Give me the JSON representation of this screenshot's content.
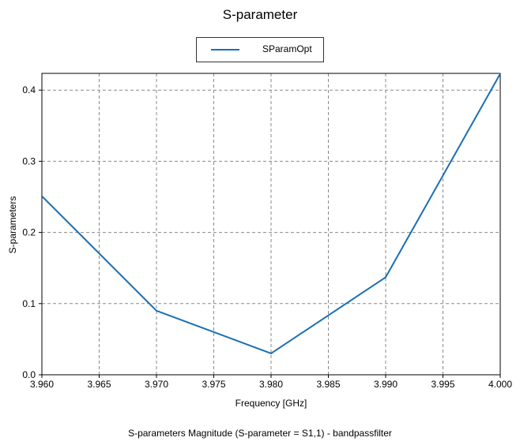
{
  "chart_data": {
    "type": "line",
    "title": "S-parameter",
    "xlabel": "Frequency [GHz]",
    "ylabel": "S-parameters",
    "caption": "S-parameters Magnitude (S-parameter = S1,1) - bandpassfilter",
    "xlim": [
      3.96,
      4.0
    ],
    "ylim": [
      0,
      0.42
    ],
    "x_ticks": [
      "3.960",
      "3.965",
      "3.970",
      "3.975",
      "3.980",
      "3.985",
      "3.990",
      "3.995",
      "4.000"
    ],
    "y_ticks": [
      "0.0",
      "0.1",
      "0.2",
      "0.3",
      "0.4"
    ],
    "grid": true,
    "legend_position": "top-center",
    "series": [
      {
        "name": "SParamOpt",
        "color": "#1a6fb3",
        "x": [
          3.96,
          3.97,
          3.98,
          3.99,
          4.0
        ],
        "y": [
          0.251,
          0.09,
          0.03,
          0.137,
          0.423
        ]
      }
    ]
  }
}
